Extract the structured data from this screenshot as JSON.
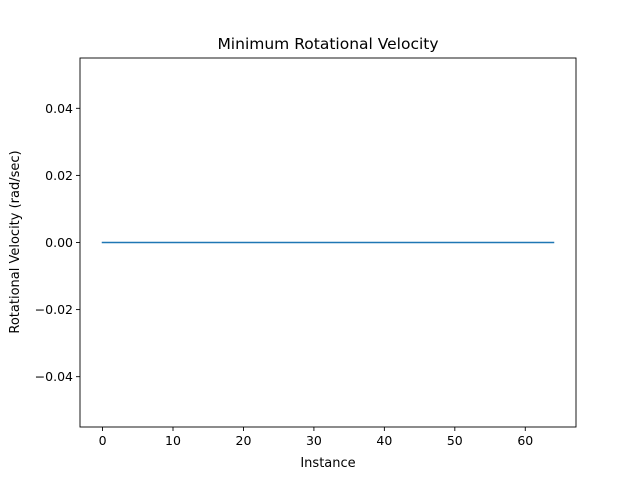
{
  "chart_data": {
    "type": "line",
    "title": "Minimum Rotational Velocity",
    "xlabel": "Instance",
    "ylabel": "Rotational Velocity (rad/sec)",
    "xlim": [
      -3.2,
      67.2
    ],
    "ylim": [
      -0.055,
      0.055
    ],
    "x_ticks": [
      0,
      10,
      20,
      30,
      40,
      50,
      60
    ],
    "x_tick_labels": [
      "0",
      "10",
      "20",
      "30",
      "40",
      "50",
      "60"
    ],
    "y_ticks": [
      -0.04,
      -0.02,
      0.0,
      0.02,
      0.04
    ],
    "y_tick_labels": [
      "−0.04",
      "−0.02",
      "0.00",
      "0.02",
      "0.04"
    ],
    "grid": false,
    "series": [
      {
        "color": "#1f77b4",
        "x": [
          0,
          64
        ],
        "y": [
          0.0,
          0.0
        ]
      }
    ]
  }
}
